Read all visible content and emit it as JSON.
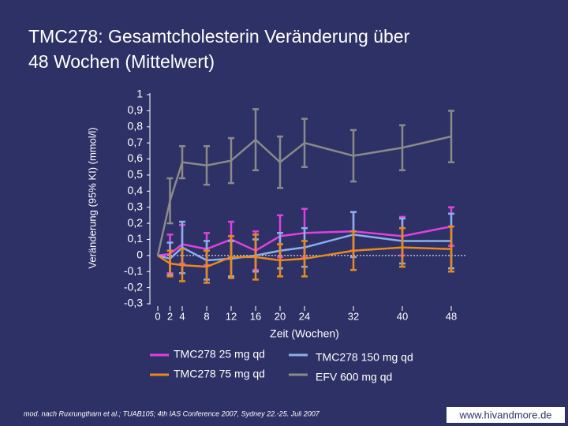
{
  "chart_data": {
    "type": "line",
    "title": "TMC278: Gesamtcholesterin Veränderung über",
    "title_line2": "48 Wochen (Mittelwert)",
    "y_label": "Veränderung (95% KI) (mmol/l)",
    "x_label": "Zeit (Wochen)",
    "x": [
      0,
      2,
      4,
      8,
      12,
      16,
      20,
      24,
      32,
      40,
      48
    ],
    "xlim": [
      0,
      48
    ],
    "xticks": [
      0,
      2,
      4,
      8,
      12,
      16,
      20,
      24,
      32,
      40,
      48
    ],
    "ylim": [
      -0.3,
      1
    ],
    "yticks": [
      {
        "value": -0.3,
        "label": "-0,3"
      },
      {
        "value": -0.2,
        "label": "-0,2"
      },
      {
        "value": -0.1,
        "label": "-0,1"
      },
      0,
      {
        "value": 0.1,
        "label": "0,1"
      },
      {
        "value": 0.2,
        "label": "0,2"
      },
      {
        "value": 0.3,
        "label": "0,3"
      },
      {
        "value": 0.4,
        "label": "0,4"
      },
      {
        "value": 0.5,
        "label": "0,5"
      },
      {
        "value": 0.6,
        "label": "0,6"
      },
      {
        "value": 0.7,
        "label": "0,7"
      },
      {
        "value": 0.8,
        "label": "0,8"
      },
      {
        "value": 0.9,
        "label": "0,9"
      },
      1
    ],
    "series": [
      {
        "name": "TMC278 25 mg qd",
        "color": "#e040e0",
        "values": [
          0,
          0.01,
          0.07,
          0.04,
          0.1,
          0.03,
          0.12,
          0.14,
          0.15,
          0.12,
          0.18
        ],
        "errors": [
          0,
          0.12,
          0.12,
          0.1,
          0.11,
          0.12,
          0.13,
          0.15,
          0.12,
          0.12,
          0.12
        ]
      },
      {
        "name": "TMC278 150 mg qd",
        "color": "#8ab0ec",
        "values": [
          0,
          -0.02,
          0.05,
          -0.03,
          -0.02,
          0,
          0.03,
          0.05,
          0.13,
          0.09,
          0.09
        ],
        "errors": [
          0,
          0.1,
          0.16,
          0.12,
          0.11,
          0.1,
          0.11,
          0.12,
          0.14,
          0.14,
          0.17
        ]
      },
      {
        "name": "TMC278 75 mg qd",
        "color": "#e88a1e",
        "values": [
          0,
          -0.05,
          -0.06,
          -0.07,
          -0.01,
          -0.01,
          -0.03,
          -0.02,
          0.03,
          0.05,
          0.04
        ],
        "errors": [
          0,
          0.08,
          0.1,
          0.1,
          0.13,
          0.14,
          0.1,
          0.11,
          0.12,
          0.12,
          0.14
        ]
      },
      {
        "name": "EFV 600 mg qd",
        "color": "#8a8a8a",
        "values": [
          0,
          0.34,
          0.58,
          0.56,
          0.59,
          0.72,
          0.58,
          0.7,
          0.62,
          0.67,
          0.74
        ],
        "errors": [
          0,
          0.14,
          0.1,
          0.12,
          0.14,
          0.19,
          0.16,
          0.15,
          0.16,
          0.14,
          0.16
        ]
      }
    ],
    "footnote": "mod. nach Ruxrungtham et al.; TUAB105; 4th IAS Conference 2007, Sydney 22.-25. Juli 2007",
    "website": "www.hivandmore.de"
  }
}
